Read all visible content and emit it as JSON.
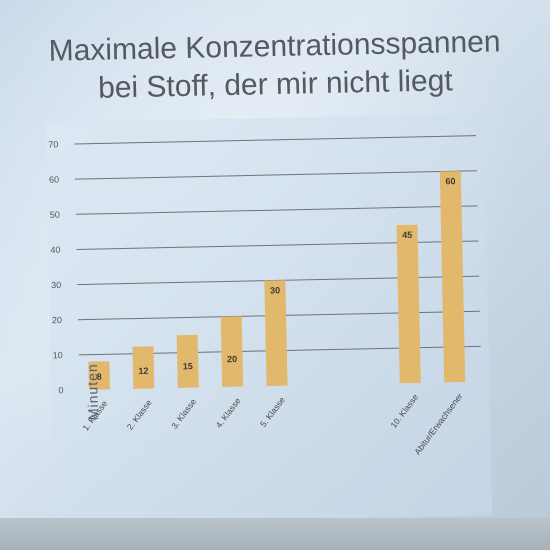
{
  "slide": {
    "title_line1": "Maximale Konzentrationsspannen",
    "title_line2": "bei Stoff, der mir nicht liegt"
  },
  "chart_data": {
    "type": "bar",
    "title": "Maximale Konzentrationsspannen bei Stoff, der mir nicht liegt",
    "ylabel": "Minuten",
    "xlabel": "",
    "ylim": [
      0,
      70
    ],
    "yticks": [
      0,
      10,
      20,
      30,
      40,
      50,
      60,
      70
    ],
    "grid": true,
    "categories": [
      "1. Klasse",
      "2. Klasse",
      "3. Klasse",
      "4. Klasse",
      "5. Klasse",
      "10. Klasse",
      "Abitur/Erwachsener"
    ],
    "values": [
      8,
      12,
      15,
      20,
      30,
      45,
      60
    ],
    "bar_color": "#e2b86d",
    "gridline_color": "#6f7378",
    "label_color": "#3f3a30"
  }
}
